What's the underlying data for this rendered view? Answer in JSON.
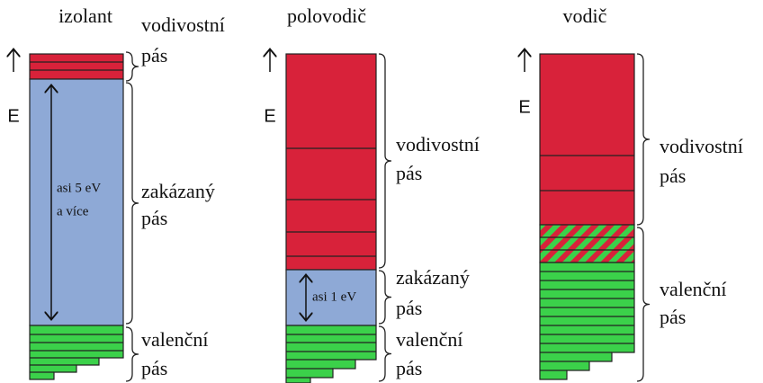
{
  "panels": [
    {
      "title": "izolant",
      "energy": "E",
      "labels": [
        [
          "vodivostní",
          "pás"
        ],
        [
          "zakázaný",
          "pás"
        ],
        [
          "valenční",
          "pás"
        ]
      ],
      "gap": [
        "asi 5 eV",
        "a více"
      ]
    },
    {
      "title": "polovodič",
      "energy": "E",
      "labels": [
        [
          "vodivostní",
          "pás"
        ],
        [
          "zakázaný",
          "pás"
        ],
        [
          "valenční",
          "pás"
        ]
      ],
      "gap": [
        "asi 1 eV"
      ]
    },
    {
      "title": "vodič",
      "energy": "E",
      "labels": [
        [
          "vodivostní",
          "pás"
        ],
        [
          "valenční",
          "pás"
        ]
      ]
    }
  ]
}
